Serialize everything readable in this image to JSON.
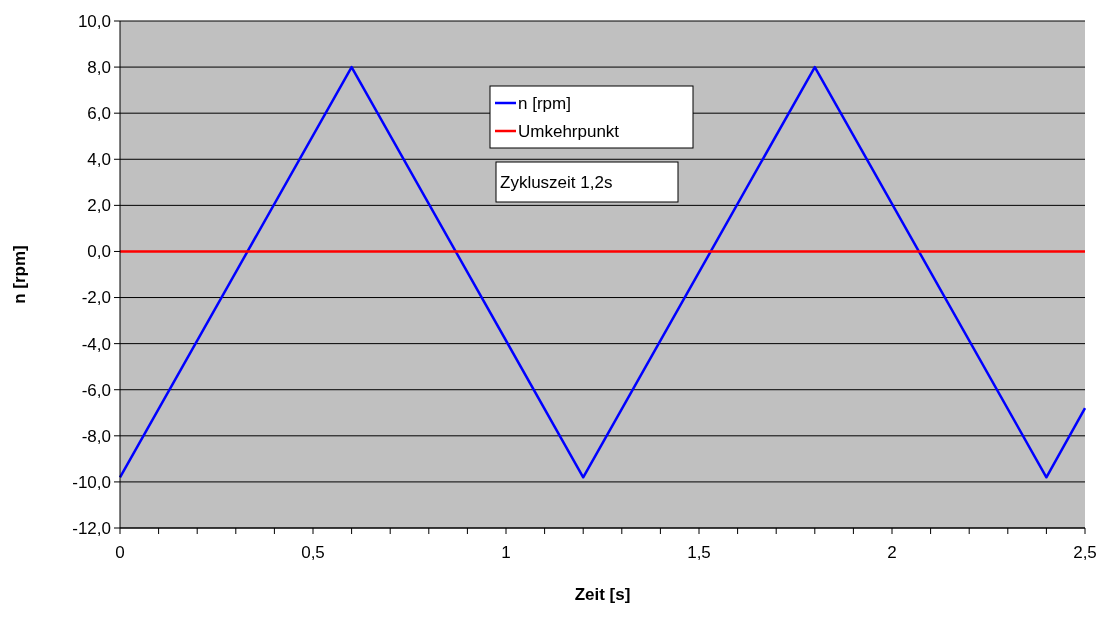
{
  "chart_data": {
    "type": "line",
    "xlabel": "Zeit [s]",
    "ylabel": "n [rpm]",
    "series": [
      {
        "name": "n [rpm]",
        "color": "#0000ff",
        "x": [
          0,
          0.6,
          1.2,
          1.8,
          2.4,
          2.5
        ],
        "values": [
          -9.8,
          8,
          -9.8,
          8,
          -9.8,
          -6.8
        ]
      },
      {
        "name": "Umkehrpunkt",
        "color": "#ff0000",
        "x": [
          0,
          2.5
        ],
        "values": [
          0,
          0
        ]
      }
    ],
    "xlim": [
      0,
      2.5
    ],
    "xticks": [
      {
        "value": 0,
        "label": "0"
      },
      {
        "value": 0.1,
        "label": null
      },
      {
        "value": 0.2,
        "label": null
      },
      {
        "value": 0.3,
        "label": null
      },
      {
        "value": 0.4,
        "label": null
      },
      {
        "value": 0.5,
        "label": "0,5"
      },
      {
        "value": 0.6,
        "label": null
      },
      {
        "value": 0.7,
        "label": null
      },
      {
        "value": 0.8,
        "label": null
      },
      {
        "value": 0.9,
        "label": null
      },
      {
        "value": 1,
        "label": "1"
      },
      {
        "value": 1.1,
        "label": null
      },
      {
        "value": 1.2,
        "label": null
      },
      {
        "value": 1.3,
        "label": null
      },
      {
        "value": 1.4,
        "label": null
      },
      {
        "value": 1.5,
        "label": "1,5"
      },
      {
        "value": 1.6,
        "label": null
      },
      {
        "value": 1.7,
        "label": null
      },
      {
        "value": 1.8,
        "label": null
      },
      {
        "value": 1.9,
        "label": null
      },
      {
        "value": 2,
        "label": "2"
      },
      {
        "value": 2.1,
        "label": null
      },
      {
        "value": 2.2,
        "label": null
      },
      {
        "value": 2.3,
        "label": null
      },
      {
        "value": 2.4,
        "label": null
      },
      {
        "value": 2.5,
        "label": "2,5"
      }
    ],
    "ylim": [
      -12,
      10
    ],
    "yticks": [
      {
        "value": -12,
        "label": "-12,0"
      },
      {
        "value": -10,
        "label": "-10,0"
      },
      {
        "value": -8,
        "label": "-8,0"
      },
      {
        "value": -6,
        "label": "-6,0"
      },
      {
        "value": -4,
        "label": "-4,0"
      },
      {
        "value": -2,
        "label": "-2,0"
      },
      {
        "value": 0,
        "label": "0,0"
      },
      {
        "value": 2,
        "label": "2,0"
      },
      {
        "value": 4,
        "label": "4,0"
      },
      {
        "value": 6,
        "label": "6,0"
      },
      {
        "value": 8,
        "label": "8,0"
      },
      {
        "value": 10,
        "label": "10,0"
      }
    ],
    "grid": "y",
    "legend": "top",
    "marker": "none",
    "line_style": "solid",
    "annotations": [
      "Zykluszeit 1,2s"
    ]
  }
}
